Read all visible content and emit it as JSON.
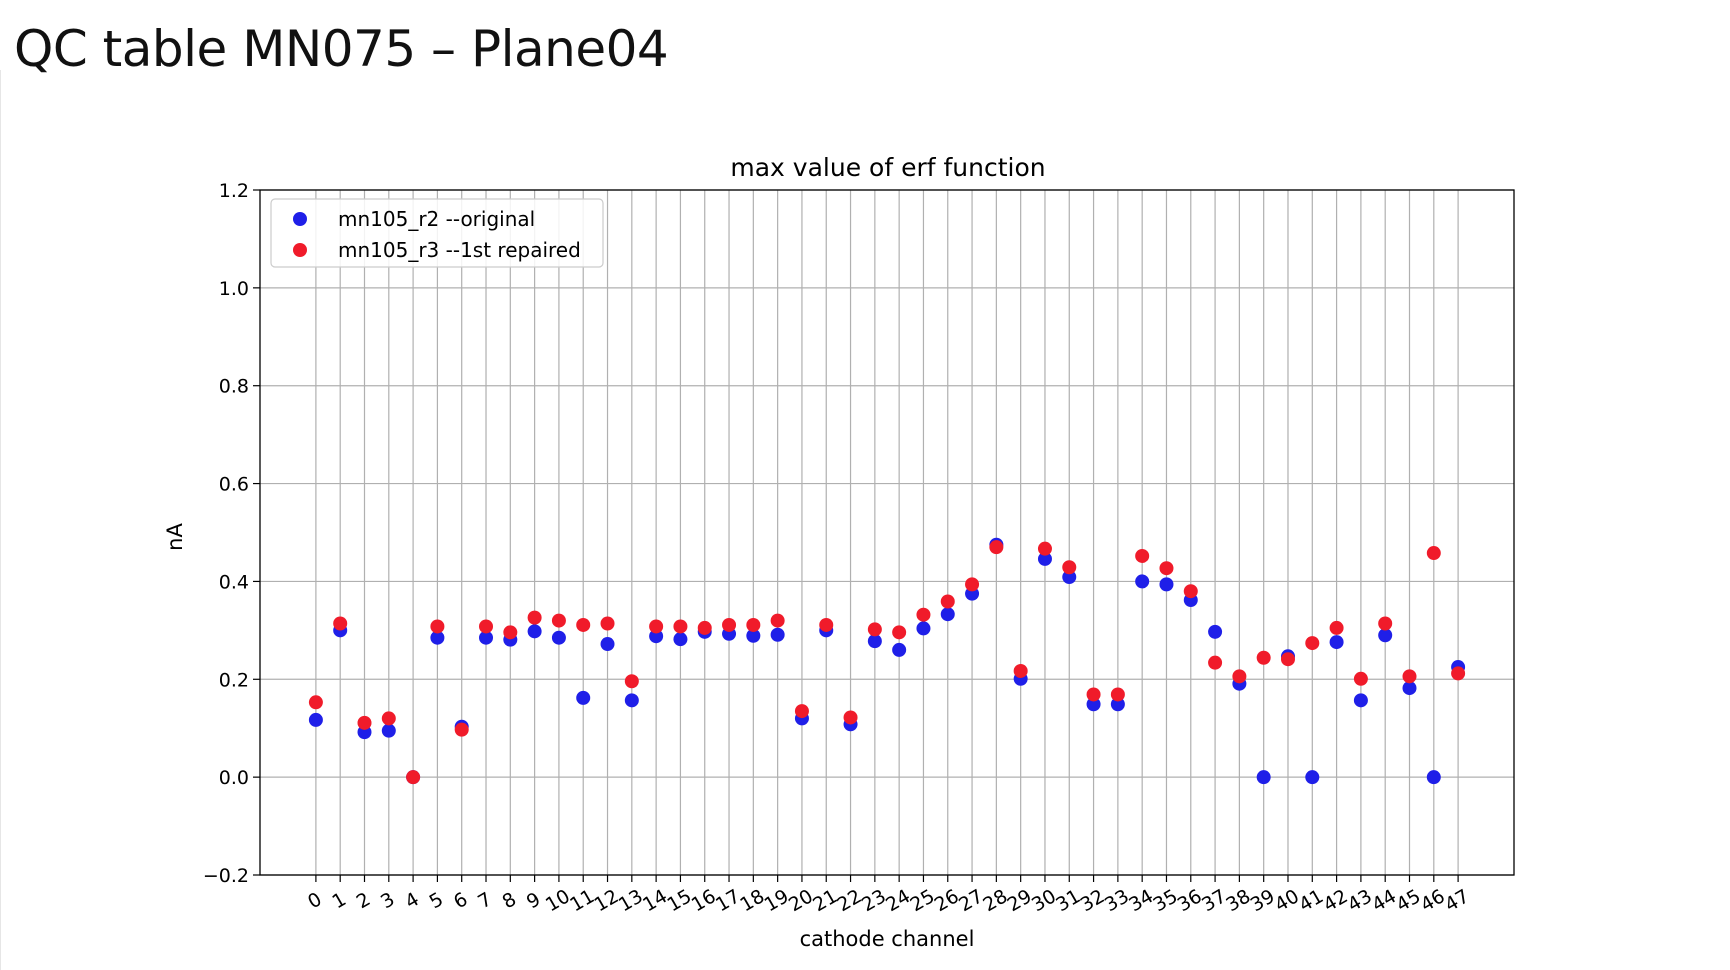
{
  "slide": {
    "title": "QC table MN075 – Plane04"
  },
  "chart_data": {
    "type": "scatter",
    "title": "max value of erf function",
    "xlabel": "cathode channel",
    "ylabel": "nA",
    "x": [
      0,
      1,
      2,
      3,
      4,
      5,
      6,
      7,
      8,
      9,
      10,
      11,
      12,
      13,
      14,
      15,
      16,
      17,
      18,
      19,
      20,
      21,
      22,
      23,
      24,
      25,
      26,
      27,
      28,
      29,
      30,
      31,
      32,
      33,
      34,
      35,
      36,
      37,
      38,
      39,
      40,
      41,
      42,
      43,
      44,
      45,
      46,
      47
    ],
    "xlim": [
      -2.3,
      49.3
    ],
    "ylim": [
      -0.2,
      1.2
    ],
    "yticks": [
      -0.2,
      0.0,
      0.2,
      0.4,
      0.6,
      0.8,
      1.0,
      1.2
    ],
    "ytick_labels": [
      "−0.2",
      "0.0",
      "0.2",
      "0.4",
      "0.6",
      "0.8",
      "1.0",
      "1.2"
    ],
    "grid": true,
    "legend_position": "top-left",
    "series": [
      {
        "name": "mn105_r2 --original",
        "color": "#1f1fe8",
        "values": [
          0.117,
          0.3,
          0.092,
          0.095,
          0.0,
          0.285,
          0.103,
          0.285,
          0.281,
          0.298,
          0.285,
          0.162,
          0.272,
          0.157,
          0.288,
          0.282,
          0.297,
          0.293,
          0.289,
          0.291,
          0.12,
          0.3,
          0.108,
          0.278,
          0.26,
          0.304,
          0.333,
          0.375,
          0.475,
          0.201,
          0.446,
          0.409,
          0.149,
          0.149,
          0.4,
          0.394,
          0.362,
          0.297,
          0.191,
          0.0,
          0.247,
          0.0,
          0.276,
          0.157,
          0.29,
          0.182,
          0.0,
          0.225
        ]
      },
      {
        "name": "mn105_r3 --1st repaired",
        "color": "#f01b2a",
        "values": [
          0.153,
          0.314,
          0.111,
          0.12,
          0.0,
          0.308,
          0.097,
          0.308,
          0.296,
          0.326,
          0.32,
          0.311,
          0.314,
          0.196,
          0.308,
          0.308,
          0.305,
          0.311,
          0.311,
          0.32,
          0.135,
          0.311,
          0.122,
          0.302,
          0.296,
          0.332,
          0.359,
          0.394,
          0.47,
          0.217,
          0.467,
          0.429,
          0.169,
          0.169,
          0.452,
          0.427,
          0.38,
          0.234,
          0.206,
          0.244,
          0.241,
          0.274,
          0.305,
          0.201,
          0.314,
          0.206,
          0.458,
          0.212
        ]
      }
    ]
  }
}
